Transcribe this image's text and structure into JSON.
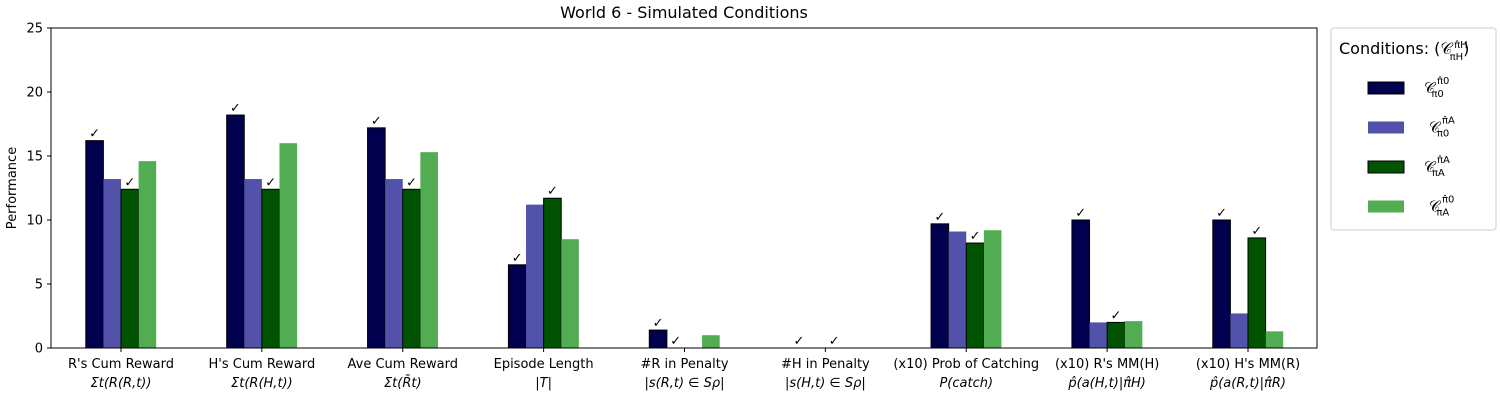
{
  "chart_data": {
    "type": "bar",
    "title": "World 6 - Simulated Conditions",
    "ylabel": "Performance",
    "xlabel": "",
    "ylim": [
      0,
      25
    ],
    "yticks": [
      "0",
      "5",
      "10",
      "15",
      "20",
      "25"
    ],
    "grid": false,
    "legend_position": "outside-top-right",
    "categories": [
      {
        "line1": "R's Cum Reward",
        "line2": "Σt(R(R,t))"
      },
      {
        "line1": "H's Cum Reward",
        "line2": "Σt(R(H,t))"
      },
      {
        "line1": "Ave Cum Reward",
        "line2": "Σt(R̄t)"
      },
      {
        "line1": "Episode Length",
        "line2": "|T|"
      },
      {
        "line1": "#R in Penalty",
        "line2": "|s(R,t) ∈ Sρ|"
      },
      {
        "line1": "#H in Penalty",
        "line2": "|s(H,t) ∈ Sρ|"
      },
      {
        "line1": "(x10) Prob of Catching",
        "line2": "P(catch)"
      },
      {
        "line1": "(x10) R's MM(H)",
        "line2": "p̂(a(H,t)|π̂H)"
      },
      {
        "line1": "(x10) H's MM(R)",
        "line2": "p̂(a(R,t)|π̂R)"
      }
    ],
    "legend_title": "Conditions: (𝒞 π̂H / πH)",
    "series": [
      {
        "name": "𝒞 π̂0 / π0",
        "color": "#00004f",
        "outlined": true,
        "values": [
          16.2,
          18.2,
          17.2,
          6.5,
          1.4,
          0.0,
          9.7,
          10.0,
          10.0
        ],
        "checks": [
          true,
          true,
          true,
          true,
          true,
          true,
          true,
          true,
          true
        ]
      },
      {
        "name": "𝒞 π̂A / π0",
        "color": "#5252ab",
        "outlined": false,
        "values": [
          13.2,
          13.2,
          13.2,
          11.2,
          0.0,
          0.0,
          9.1,
          2.0,
          2.7
        ],
        "checks": [
          false,
          false,
          false,
          false,
          true,
          false,
          false,
          false,
          false
        ]
      },
      {
        "name": "𝒞 π̂A / πA",
        "color": "#005300",
        "outlined": true,
        "values": [
          12.4,
          12.4,
          12.4,
          11.7,
          0.0,
          0.0,
          8.2,
          2.0,
          8.6
        ],
        "checks": [
          true,
          true,
          true,
          true,
          false,
          true,
          true,
          true,
          true
        ]
      },
      {
        "name": "𝒞 π̂0 / πA",
        "color": "#52ac52",
        "outlined": false,
        "values": [
          14.6,
          16.0,
          15.3,
          8.5,
          1.0,
          0.0,
          9.2,
          2.1,
          1.3
        ],
        "checks": [
          false,
          false,
          false,
          false,
          false,
          false,
          false,
          false,
          false
        ]
      }
    ]
  }
}
